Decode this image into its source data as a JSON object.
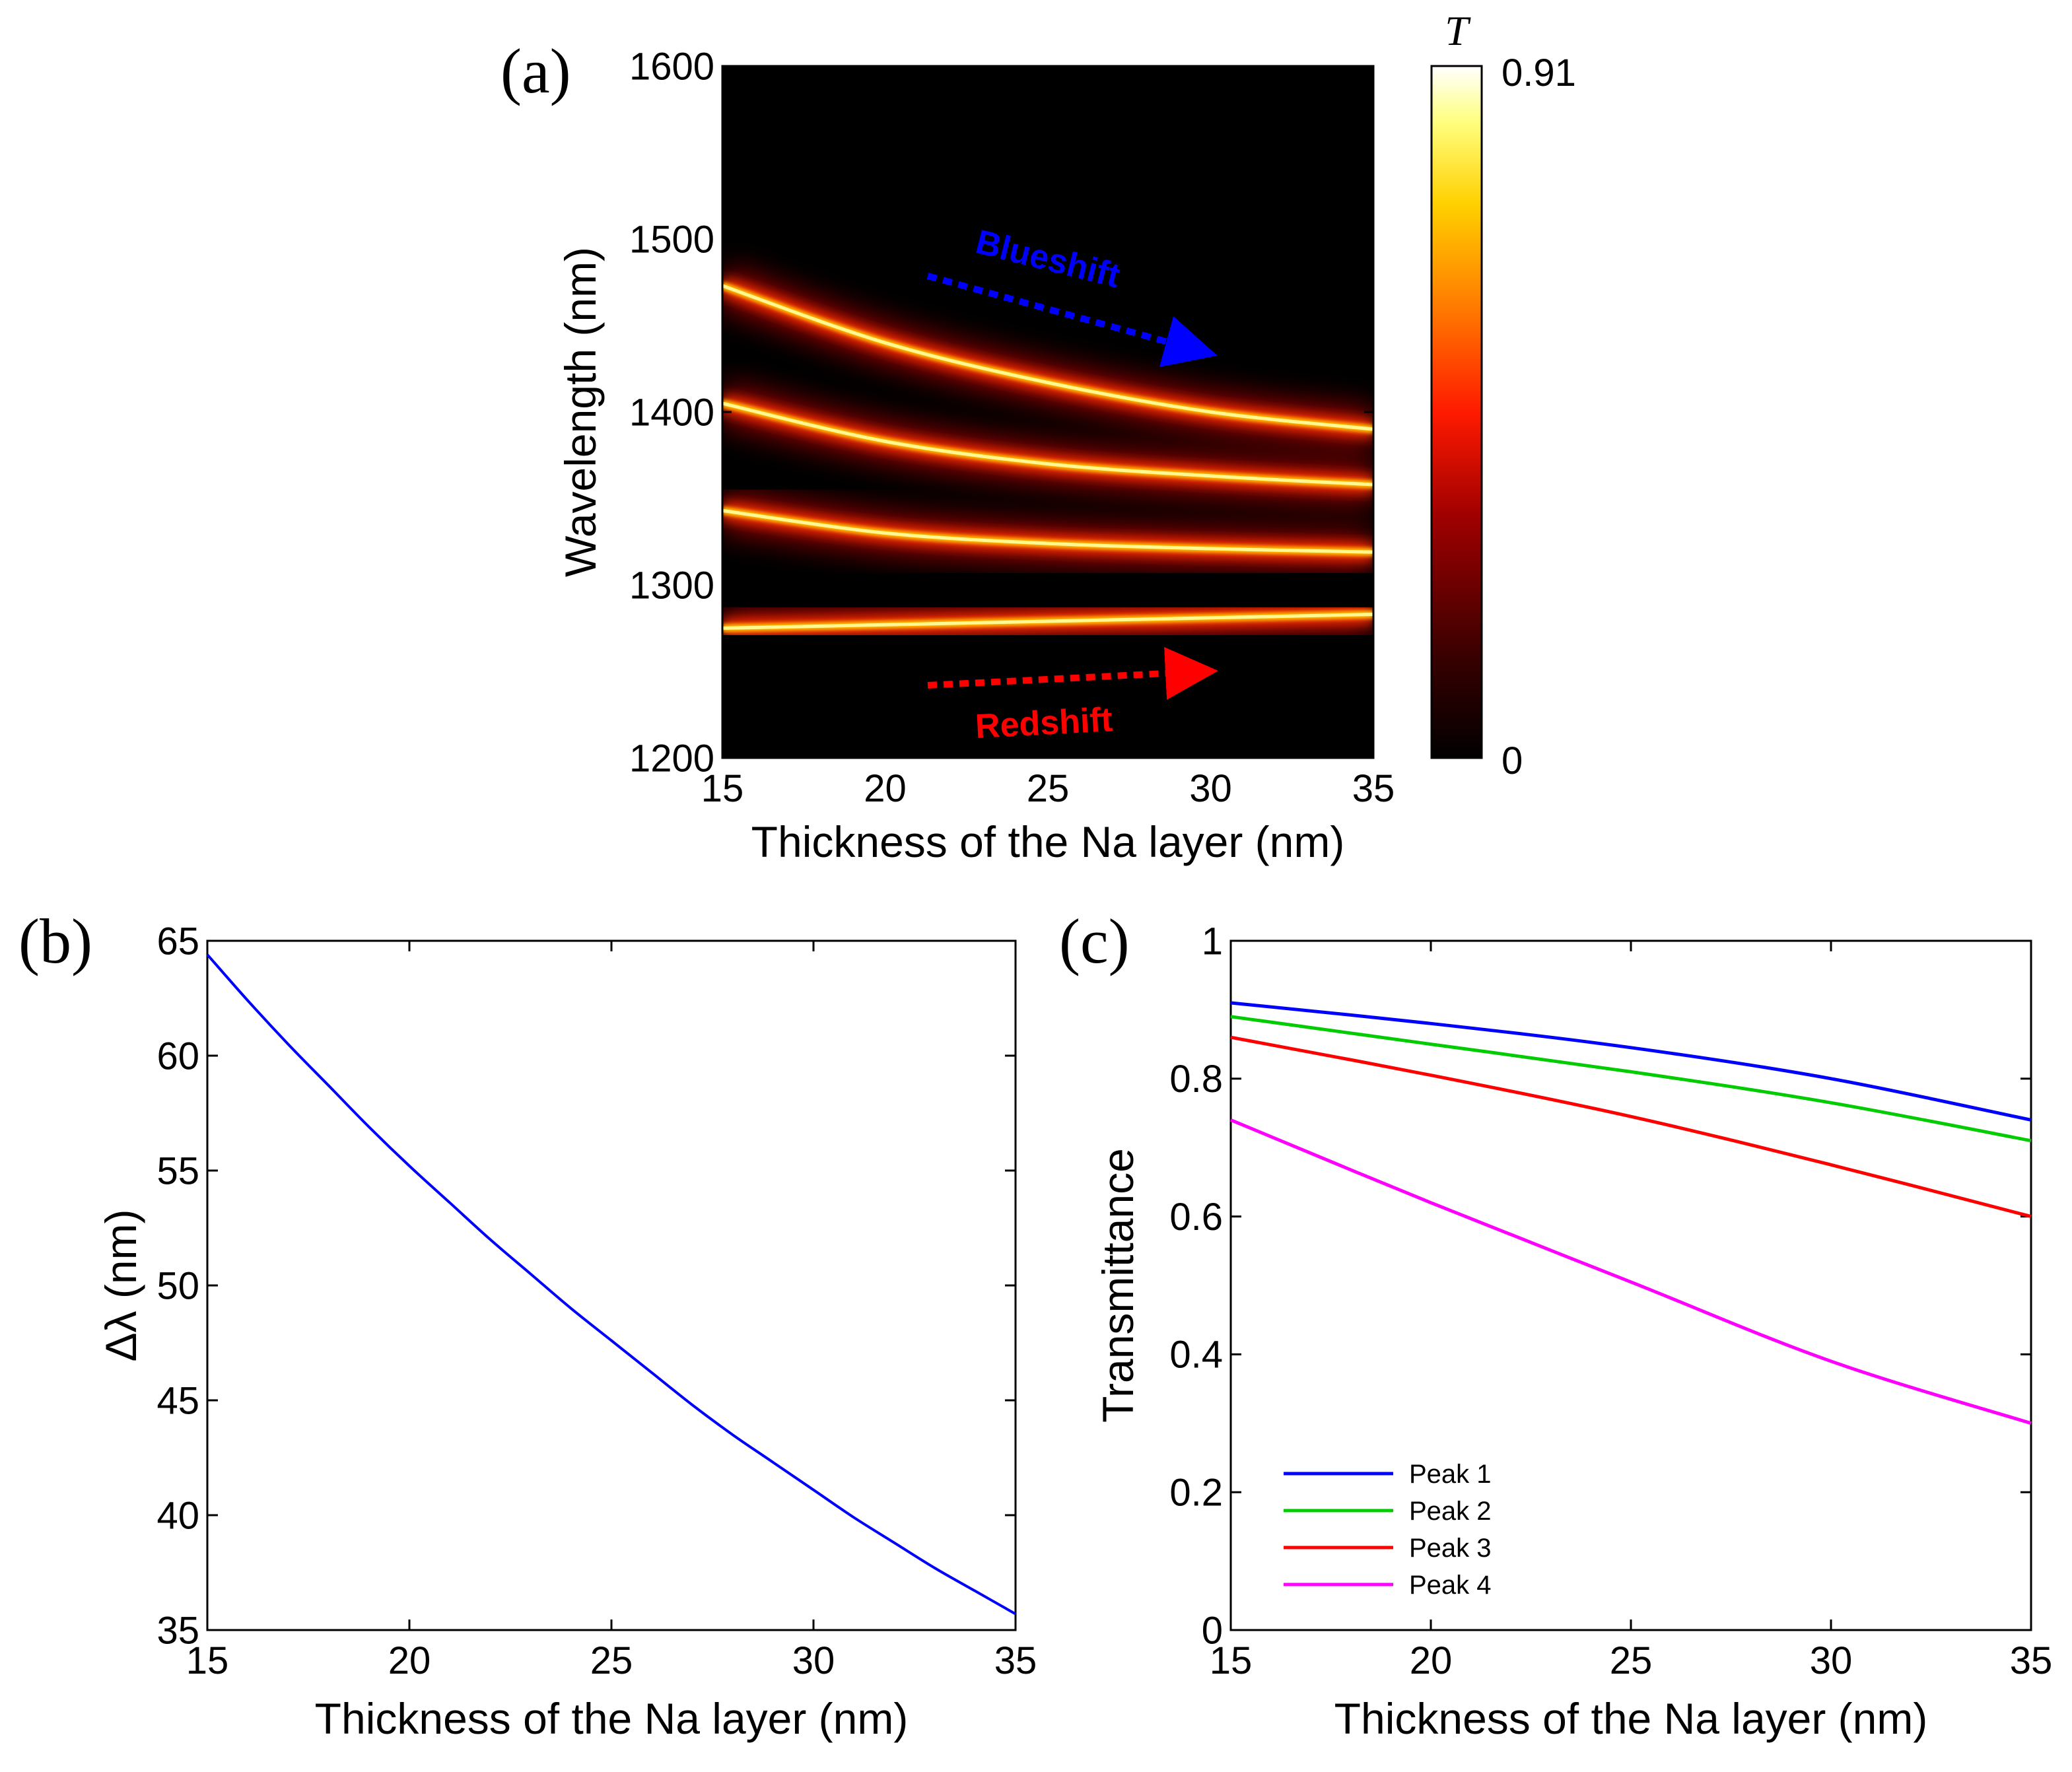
{
  "chart_data": [
    {
      "id": "a",
      "panel_label": "(a)",
      "type": "heatmap",
      "xlabel": "Thickness of the Na layer (nm)",
      "ylabel": "Wavelength (nm)",
      "xlim": [
        15,
        35
      ],
      "ylim": [
        1200,
        1600
      ],
      "xticks": [
        "15",
        "20",
        "25",
        "30",
        "35"
      ],
      "yticks": [
        "1200",
        "1300",
        "1400",
        "1500",
        "1600"
      ],
      "colorbar": {
        "label": "T",
        "max_label": "0.91",
        "min_label": "0",
        "min": 0,
        "max": 0.91
      },
      "colormap": [
        "#000000",
        "#3a0000",
        "#a00000",
        "#ff1a00",
        "#ff7a00",
        "#ffd000",
        "#ffff80",
        "#ffffff"
      ],
      "bands": [
        {
          "name": "Peak 1",
          "x": [
            15,
            20,
            25,
            30,
            35
          ],
          "y": [
            1473,
            1440,
            1417,
            1400,
            1390
          ],
          "peak_T": [
            0.91,
            0.88,
            0.85,
            0.81,
            0.74
          ]
        },
        {
          "name": "Peak 2",
          "x": [
            15,
            20,
            25,
            30,
            35
          ],
          "y": [
            1405,
            1383,
            1370,
            1363,
            1358
          ],
          "peak_T": [
            0.89,
            0.86,
            0.82,
            0.77,
            0.71
          ]
        },
        {
          "name": "Peak 3",
          "x": [
            15,
            20,
            25,
            30,
            35
          ],
          "y": [
            1343,
            1330,
            1324,
            1321,
            1319
          ],
          "peak_T": [
            0.86,
            0.81,
            0.74,
            0.68,
            0.6
          ]
        },
        {
          "name": "Peak 4",
          "x": [
            15,
            20,
            25,
            30,
            35
          ],
          "y": [
            1275,
            1277,
            1279,
            1281,
            1283
          ],
          "peak_T": [
            0.74,
            0.62,
            0.5,
            0.39,
            0.3
          ]
        }
      ],
      "annotations": [
        {
          "text": "Blueshift",
          "color": "#0000ff"
        },
        {
          "text": "Redshift",
          "color": "#ff0000"
        }
      ]
    },
    {
      "id": "b",
      "panel_label": "(b)",
      "type": "line",
      "xlabel": "Thickness of the Na layer (nm)",
      "ylabel": "Δλ (nm)",
      "xlim": [
        15,
        35
      ],
      "ylim": [
        35,
        65
      ],
      "xticks": [
        "15",
        "20",
        "25",
        "30",
        "35"
      ],
      "yticks": [
        "35",
        "40",
        "45",
        "50",
        "55",
        "60",
        "65"
      ],
      "series": [
        {
          "name": "Δλ",
          "color": "#0000ff",
          "x": [
            15,
            16,
            17,
            18,
            19,
            20,
            21,
            22,
            23,
            24,
            25,
            26,
            27,
            28,
            29,
            30,
            31,
            32,
            33,
            34,
            35
          ],
          "y": [
            64.4,
            62.4,
            60.5,
            58.7,
            56.9,
            55.2,
            53.6,
            52.0,
            50.5,
            49.0,
            47.6,
            46.2,
            44.8,
            43.5,
            42.3,
            41.1,
            39.9,
            38.8,
            37.7,
            36.7,
            35.7
          ]
        }
      ]
    },
    {
      "id": "c",
      "panel_label": "(c)",
      "type": "line",
      "xlabel": "Thickness of the Na layer (nm)",
      "ylabel": "Transmittance",
      "xlim": [
        15,
        35
      ],
      "ylim": [
        0,
        1
      ],
      "xticks": [
        "15",
        "20",
        "25",
        "30",
        "35"
      ],
      "yticks": [
        "0",
        "0.2",
        "0.4",
        "0.6",
        "0.8",
        "1"
      ],
      "legend_position": "bottom-left",
      "series": [
        {
          "name": "Peak 1",
          "color": "#0000ff",
          "x": [
            15,
            20,
            25,
            30,
            35
          ],
          "y": [
            0.91,
            0.88,
            0.845,
            0.8,
            0.74
          ]
        },
        {
          "name": "Peak 2",
          "color": "#00cc00",
          "x": [
            15,
            20,
            25,
            30,
            35
          ],
          "y": [
            0.89,
            0.85,
            0.81,
            0.765,
            0.71
          ]
        },
        {
          "name": "Peak 3",
          "color": "#ff0000",
          "x": [
            15,
            20,
            25,
            30,
            35
          ],
          "y": [
            0.86,
            0.805,
            0.745,
            0.675,
            0.6
          ]
        },
        {
          "name": "Peak 4",
          "color": "#ff00ff",
          "x": [
            15,
            20,
            25,
            30,
            35
          ],
          "y": [
            0.74,
            0.62,
            0.505,
            0.39,
            0.3
          ]
        }
      ]
    }
  ]
}
